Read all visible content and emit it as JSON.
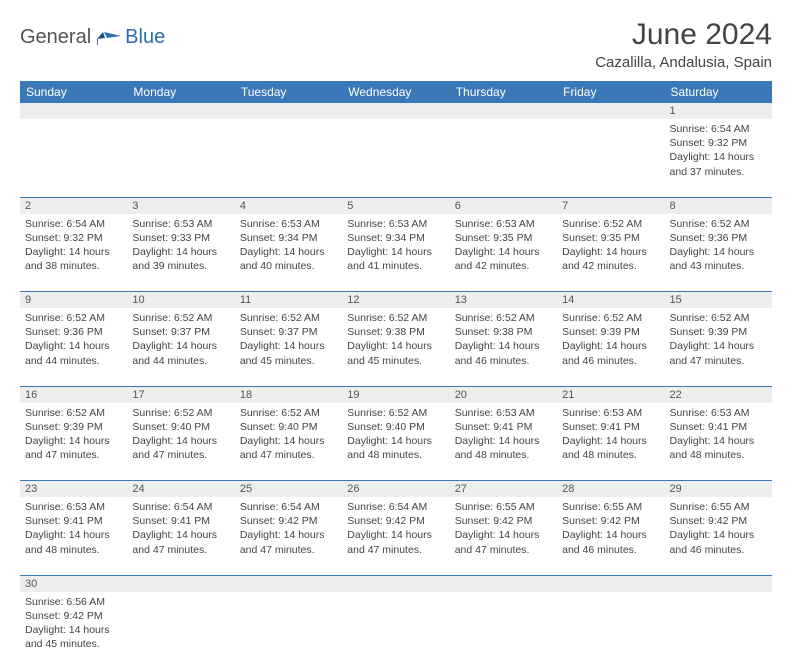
{
  "logo": {
    "general": "General",
    "blue": "Blue"
  },
  "header": {
    "month_title": "June 2024",
    "location": "Cazalilla, Andalusia, Spain"
  },
  "dayHeaders": [
    "Sunday",
    "Monday",
    "Tuesday",
    "Wednesday",
    "Thursday",
    "Friday",
    "Saturday"
  ],
  "colors": {
    "header_bg": "#3b78b8",
    "header_text": "#ffffff",
    "daynum_bg": "#eeeeee",
    "border": "#3b78b8",
    "logo_blue": "#2a6db0",
    "text": "#444444"
  },
  "weeks": [
    [
      null,
      null,
      null,
      null,
      null,
      null,
      {
        "n": "1",
        "sunrise": "Sunrise: 6:54 AM",
        "sunset": "Sunset: 9:32 PM",
        "daylight1": "Daylight: 14 hours",
        "daylight2": "and 37 minutes."
      }
    ],
    [
      {
        "n": "2",
        "sunrise": "Sunrise: 6:54 AM",
        "sunset": "Sunset: 9:32 PM",
        "daylight1": "Daylight: 14 hours",
        "daylight2": "and 38 minutes."
      },
      {
        "n": "3",
        "sunrise": "Sunrise: 6:53 AM",
        "sunset": "Sunset: 9:33 PM",
        "daylight1": "Daylight: 14 hours",
        "daylight2": "and 39 minutes."
      },
      {
        "n": "4",
        "sunrise": "Sunrise: 6:53 AM",
        "sunset": "Sunset: 9:34 PM",
        "daylight1": "Daylight: 14 hours",
        "daylight2": "and 40 minutes."
      },
      {
        "n": "5",
        "sunrise": "Sunrise: 6:53 AM",
        "sunset": "Sunset: 9:34 PM",
        "daylight1": "Daylight: 14 hours",
        "daylight2": "and 41 minutes."
      },
      {
        "n": "6",
        "sunrise": "Sunrise: 6:53 AM",
        "sunset": "Sunset: 9:35 PM",
        "daylight1": "Daylight: 14 hours",
        "daylight2": "and 42 minutes."
      },
      {
        "n": "7",
        "sunrise": "Sunrise: 6:52 AM",
        "sunset": "Sunset: 9:35 PM",
        "daylight1": "Daylight: 14 hours",
        "daylight2": "and 42 minutes."
      },
      {
        "n": "8",
        "sunrise": "Sunrise: 6:52 AM",
        "sunset": "Sunset: 9:36 PM",
        "daylight1": "Daylight: 14 hours",
        "daylight2": "and 43 minutes."
      }
    ],
    [
      {
        "n": "9",
        "sunrise": "Sunrise: 6:52 AM",
        "sunset": "Sunset: 9:36 PM",
        "daylight1": "Daylight: 14 hours",
        "daylight2": "and 44 minutes."
      },
      {
        "n": "10",
        "sunrise": "Sunrise: 6:52 AM",
        "sunset": "Sunset: 9:37 PM",
        "daylight1": "Daylight: 14 hours",
        "daylight2": "and 44 minutes."
      },
      {
        "n": "11",
        "sunrise": "Sunrise: 6:52 AM",
        "sunset": "Sunset: 9:37 PM",
        "daylight1": "Daylight: 14 hours",
        "daylight2": "and 45 minutes."
      },
      {
        "n": "12",
        "sunrise": "Sunrise: 6:52 AM",
        "sunset": "Sunset: 9:38 PM",
        "daylight1": "Daylight: 14 hours",
        "daylight2": "and 45 minutes."
      },
      {
        "n": "13",
        "sunrise": "Sunrise: 6:52 AM",
        "sunset": "Sunset: 9:38 PM",
        "daylight1": "Daylight: 14 hours",
        "daylight2": "and 46 minutes."
      },
      {
        "n": "14",
        "sunrise": "Sunrise: 6:52 AM",
        "sunset": "Sunset: 9:39 PM",
        "daylight1": "Daylight: 14 hours",
        "daylight2": "and 46 minutes."
      },
      {
        "n": "15",
        "sunrise": "Sunrise: 6:52 AM",
        "sunset": "Sunset: 9:39 PM",
        "daylight1": "Daylight: 14 hours",
        "daylight2": "and 47 minutes."
      }
    ],
    [
      {
        "n": "16",
        "sunrise": "Sunrise: 6:52 AM",
        "sunset": "Sunset: 9:39 PM",
        "daylight1": "Daylight: 14 hours",
        "daylight2": "and 47 minutes."
      },
      {
        "n": "17",
        "sunrise": "Sunrise: 6:52 AM",
        "sunset": "Sunset: 9:40 PM",
        "daylight1": "Daylight: 14 hours",
        "daylight2": "and 47 minutes."
      },
      {
        "n": "18",
        "sunrise": "Sunrise: 6:52 AM",
        "sunset": "Sunset: 9:40 PM",
        "daylight1": "Daylight: 14 hours",
        "daylight2": "and 47 minutes."
      },
      {
        "n": "19",
        "sunrise": "Sunrise: 6:52 AM",
        "sunset": "Sunset: 9:40 PM",
        "daylight1": "Daylight: 14 hours",
        "daylight2": "and 48 minutes."
      },
      {
        "n": "20",
        "sunrise": "Sunrise: 6:53 AM",
        "sunset": "Sunset: 9:41 PM",
        "daylight1": "Daylight: 14 hours",
        "daylight2": "and 48 minutes."
      },
      {
        "n": "21",
        "sunrise": "Sunrise: 6:53 AM",
        "sunset": "Sunset: 9:41 PM",
        "daylight1": "Daylight: 14 hours",
        "daylight2": "and 48 minutes."
      },
      {
        "n": "22",
        "sunrise": "Sunrise: 6:53 AM",
        "sunset": "Sunset: 9:41 PM",
        "daylight1": "Daylight: 14 hours",
        "daylight2": "and 48 minutes."
      }
    ],
    [
      {
        "n": "23",
        "sunrise": "Sunrise: 6:53 AM",
        "sunset": "Sunset: 9:41 PM",
        "daylight1": "Daylight: 14 hours",
        "daylight2": "and 48 minutes."
      },
      {
        "n": "24",
        "sunrise": "Sunrise: 6:54 AM",
        "sunset": "Sunset: 9:41 PM",
        "daylight1": "Daylight: 14 hours",
        "daylight2": "and 47 minutes."
      },
      {
        "n": "25",
        "sunrise": "Sunrise: 6:54 AM",
        "sunset": "Sunset: 9:42 PM",
        "daylight1": "Daylight: 14 hours",
        "daylight2": "and 47 minutes."
      },
      {
        "n": "26",
        "sunrise": "Sunrise: 6:54 AM",
        "sunset": "Sunset: 9:42 PM",
        "daylight1": "Daylight: 14 hours",
        "daylight2": "and 47 minutes."
      },
      {
        "n": "27",
        "sunrise": "Sunrise: 6:55 AM",
        "sunset": "Sunset: 9:42 PM",
        "daylight1": "Daylight: 14 hours",
        "daylight2": "and 47 minutes."
      },
      {
        "n": "28",
        "sunrise": "Sunrise: 6:55 AM",
        "sunset": "Sunset: 9:42 PM",
        "daylight1": "Daylight: 14 hours",
        "daylight2": "and 46 minutes."
      },
      {
        "n": "29",
        "sunrise": "Sunrise: 6:55 AM",
        "sunset": "Sunset: 9:42 PM",
        "daylight1": "Daylight: 14 hours",
        "daylight2": "and 46 minutes."
      }
    ],
    [
      {
        "n": "30",
        "sunrise": "Sunrise: 6:56 AM",
        "sunset": "Sunset: 9:42 PM",
        "daylight1": "Daylight: 14 hours",
        "daylight2": "and 45 minutes."
      },
      null,
      null,
      null,
      null,
      null,
      null
    ]
  ]
}
